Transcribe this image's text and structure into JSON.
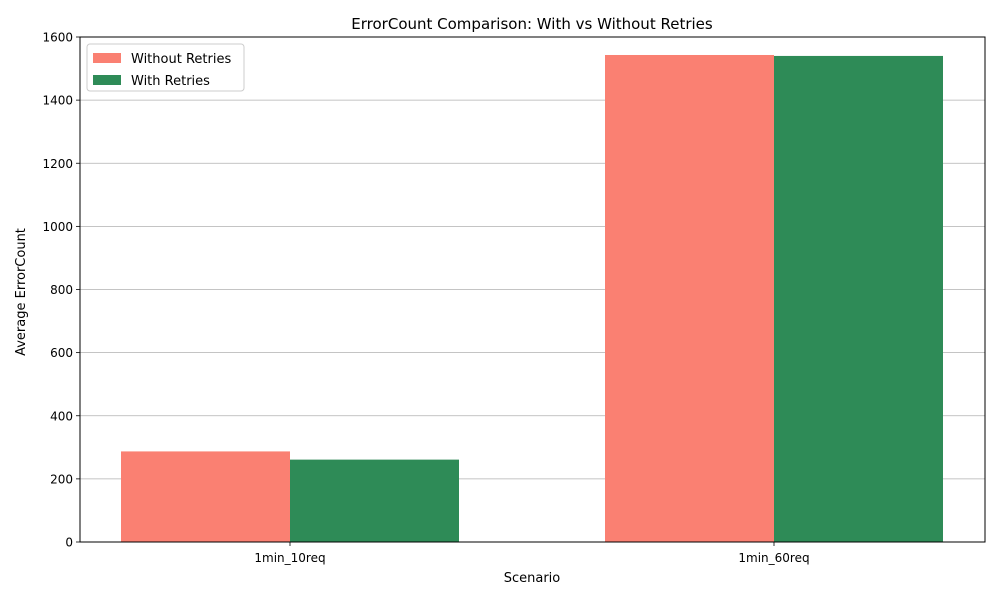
{
  "chart_data": {
    "type": "bar",
    "title": "ErrorCount Comparison: With vs Without Retries",
    "xlabel": "Scenario",
    "ylabel": "Average ErrorCount",
    "categories": [
      "1min_10req",
      "1min_60req"
    ],
    "series": [
      {
        "name": "Without Retries",
        "values": [
          287,
          1543
        ],
        "color": "#fa8072"
      },
      {
        "name": "With Retries",
        "values": [
          261,
          1540
        ],
        "color": "#2e8b57"
      }
    ],
    "ylim": [
      0,
      1600
    ],
    "yticks": [
      0,
      200,
      400,
      600,
      800,
      1000,
      1200,
      1400,
      1600
    ],
    "grid": "horizontal",
    "legend_position": "top-left"
  }
}
